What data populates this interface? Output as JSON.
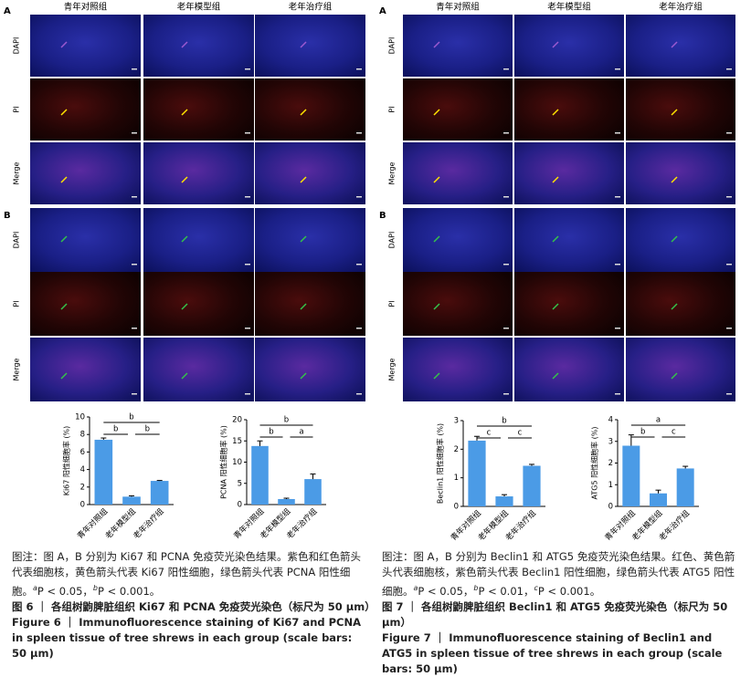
{
  "figures": [
    {
      "panels": [
        {
          "label": "A",
          "columns": [
            "青年对照组",
            "老年模型组",
            "老年治疗组"
          ],
          "rows": [
            "DAPI",
            "PI",
            "Merge"
          ]
        },
        {
          "label": "B",
          "rows": [
            "DAPI",
            "PI",
            "Merge"
          ]
        }
      ],
      "charts": [
        {
          "type": "bar",
          "ylabel": "Ki67 阳性细胞率 (%)",
          "categories": [
            "青年对照组",
            "老年模型组",
            "老年治疗组"
          ],
          "values": [
            7.4,
            0.9,
            2.7
          ],
          "errors": [
            0.2,
            0.1,
            0.05
          ],
          "ylim": [
            0,
            10
          ],
          "yticks": [
            0,
            2,
            4,
            6,
            8,
            10
          ],
          "color": "#4b9be6",
          "significance": [
            "b",
            "b",
            "b"
          ]
        },
        {
          "type": "bar",
          "ylabel": "PCNA 阳性细胞率 (%)",
          "categories": [
            "青年对照组",
            "老年模型组",
            "老年治疗组"
          ],
          "values": [
            13.8,
            1.3,
            6.0
          ],
          "errors": [
            1.2,
            0.2,
            1.2
          ],
          "ylim": [
            0,
            20
          ],
          "yticks": [
            0,
            5,
            10,
            15,
            20
          ],
          "color": "#4b9be6",
          "significance": [
            "b",
            "b",
            "a"
          ]
        }
      ],
      "note": "图注：图 A，B 分别为 Ki67 和 PCNA 免疫荧光染色结果。紫色和红色箭头代表细胞核，黄色箭头代表 Ki67 阳性细胞，绿色箭头代表 PCNA 阳性细胞。",
      "stats": [
        {
          "sup": "a",
          "text": "P < 0.05，"
        },
        {
          "sup": "b",
          "text": "P < 0.001。"
        }
      ],
      "title_cn": "图 6 ｜ 各组树鼩脾脏组织 Ki67 和 PCNA 免疫荧光染色（标尺为 50 μm）",
      "title_en": "Figure 6 ｜ Immunofluorescence staining of Ki67 and PCNA in spleen tissue of tree shrews in each group (scale bars: 50 μm)"
    },
    {
      "panels": [
        {
          "label": "A",
          "columns": [
            "青年对照组",
            "老年模型组",
            "老年治疗组"
          ],
          "rows": [
            "DAPI",
            "PI",
            "Merge"
          ]
        },
        {
          "label": "B",
          "rows": [
            "DAPI",
            "PI",
            "Merge"
          ]
        }
      ],
      "charts": [
        {
          "type": "bar",
          "ylabel": "Beclin1 阳性细胞率 (%)",
          "categories": [
            "青年对照组",
            "老年模型组",
            "老年治疗组"
          ],
          "values": [
            2.3,
            0.35,
            1.42
          ],
          "errors": [
            0.15,
            0.06,
            0.05
          ],
          "ylim": [
            0,
            3
          ],
          "yticks": [
            0,
            1,
            2,
            3
          ],
          "color": "#4b9be6",
          "significance": [
            "b",
            "c",
            "c"
          ]
        },
        {
          "type": "bar",
          "ylabel": "ATG5 阳性细胞率 (%)",
          "categories": [
            "青年对照组",
            "老年模型组",
            "老年治疗组"
          ],
          "values": [
            2.8,
            0.6,
            1.75
          ],
          "errors": [
            0.5,
            0.15,
            0.1
          ],
          "ylim": [
            0,
            4
          ],
          "yticks": [
            0,
            1,
            2,
            3,
            4
          ],
          "color": "#4b9be6",
          "significance": [
            "a",
            "b",
            "c"
          ]
        }
      ],
      "note": "图注：图 A，B 分别为 Beclin1 和 ATG5 免疫荧光染色结果。红色、黄色箭头代表细胞核，紫色箭头代表 Beclin1 阳性细胞，绿色箭头代表 ATG5 阳性细胞。",
      "stats": [
        {
          "sup": "a",
          "text": "P < 0.05，"
        },
        {
          "sup": "b",
          "text": "P < 0.01，"
        },
        {
          "sup": "c",
          "text": "P < 0.001。"
        }
      ],
      "title_cn": "图 7 ｜ 各组树鼩脾脏组织 Beclin1 和 ATG5 免疫荧光染色（标尺为 50 μm）",
      "title_en": "Figure 7 ｜ Immunofluorescence staining of Beclin1 and ATG5 in spleen tissue of tree shrews in each group (scale bars: 50 μm)"
    }
  ]
}
